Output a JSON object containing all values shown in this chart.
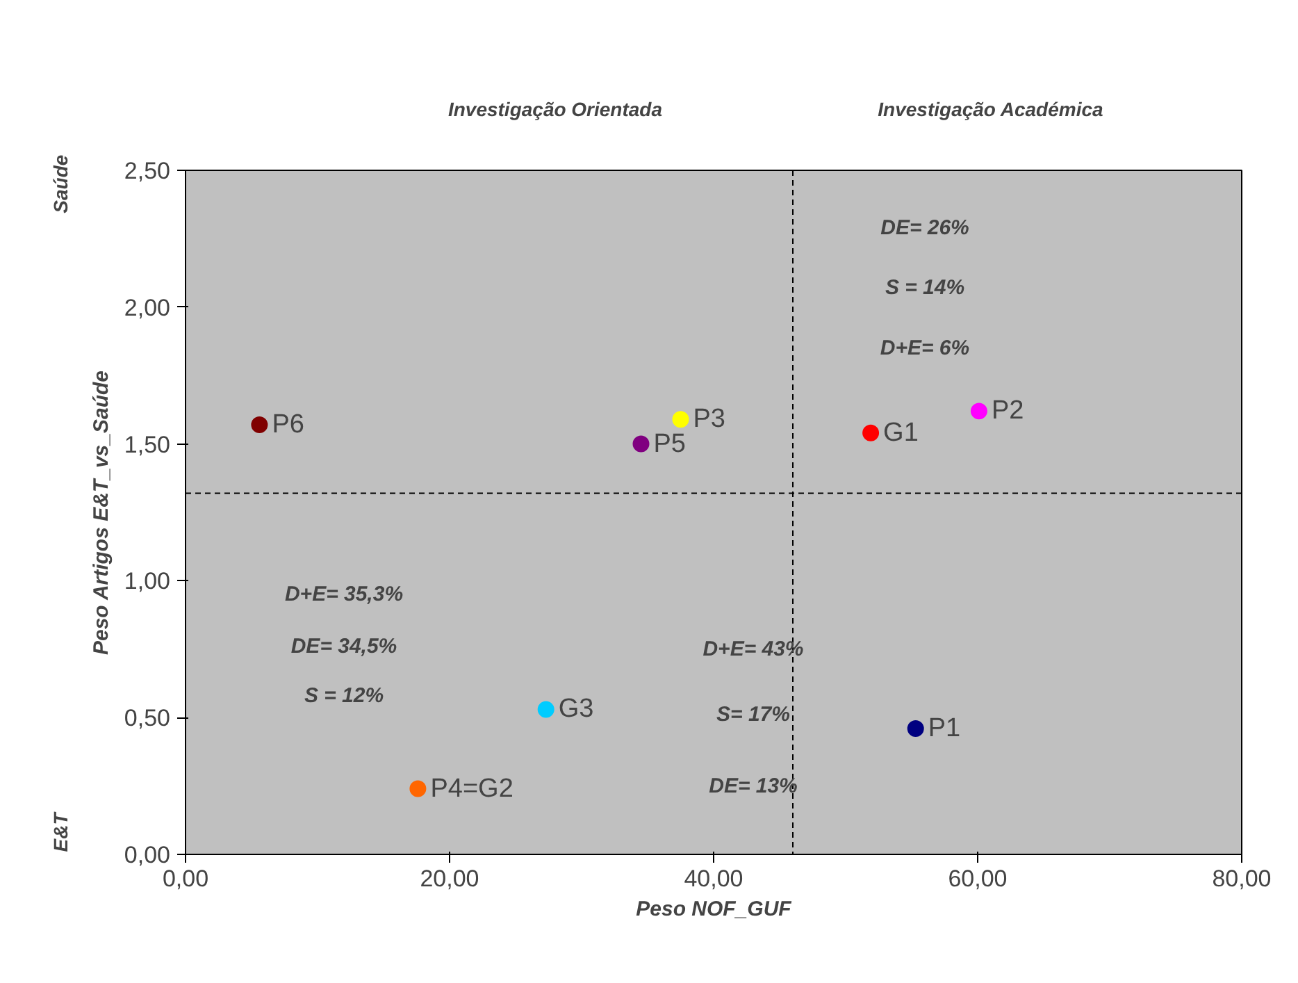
{
  "chart_data": {
    "type": "scatter",
    "xlabel": "Peso NOF_GUF",
    "ylabel": "Peso Artigos E&T_vs_Saúde",
    "xlim": [
      0,
      80
    ],
    "ylim": [
      0,
      2.5
    ],
    "xticks": [
      {
        "value": 0,
        "label": "0,00"
      },
      {
        "value": 20,
        "label": "20,00"
      },
      {
        "value": 40,
        "label": "40,00"
      },
      {
        "value": 60,
        "label": "60,00"
      },
      {
        "value": 80,
        "label": "80,00"
      }
    ],
    "yticks": [
      {
        "value": 0,
        "label": "0,00"
      },
      {
        "value": 0.5,
        "label": "0,50"
      },
      {
        "value": 1,
        "label": "1,00"
      },
      {
        "value": 1.5,
        "label": "1,50"
      },
      {
        "value": 2,
        "label": "2,00"
      },
      {
        "value": 2.5,
        "label": "2,50"
      }
    ],
    "grid": false,
    "marker": "circle",
    "series": [
      {
        "name": "P6",
        "color": "#800000",
        "x": [
          5.6
        ],
        "values": [
          1.57
        ]
      },
      {
        "name": "P5",
        "color": "#800080",
        "x": [
          34.5
        ],
        "values": [
          1.5
        ]
      },
      {
        "name": "P3",
        "color": "#ffff00",
        "x": [
          37.5
        ],
        "values": [
          1.59
        ]
      },
      {
        "name": "G1",
        "color": "#ff0000",
        "x": [
          51.9
        ],
        "values": [
          1.54
        ]
      },
      {
        "name": "P2",
        "color": "#ff00ff",
        "x": [
          60.1
        ],
        "values": [
          1.62
        ]
      },
      {
        "name": "G3",
        "color": "#00ccff",
        "x": [
          27.3
        ],
        "values": [
          0.53
        ]
      },
      {
        "name": "P1",
        "color": "#000080",
        "x": [
          55.3
        ],
        "values": [
          0.46
        ]
      },
      {
        "name": "P4=G2",
        "color": "#ff6600",
        "x": [
          17.6
        ],
        "values": [
          0.24
        ]
      }
    ],
    "ref_lines": [
      {
        "axis": "x",
        "value": 46,
        "color": "#000000",
        "line_style": "dashed"
      },
      {
        "axis": "y",
        "value": 1.32,
        "color": "#000000",
        "line_style": "dashed"
      }
    ],
    "annotations": [
      "Investigação Orientada",
      "Investigação Académica",
      "Saúde",
      "E&T",
      "DE= 26%",
      "S = 14%",
      "D+E= 6%",
      "D+E= 35,3%",
      "DE= 34,5%",
      "S = 12%",
      "D+E= 43%",
      "S= 17%",
      "DE= 13%"
    ]
  }
}
